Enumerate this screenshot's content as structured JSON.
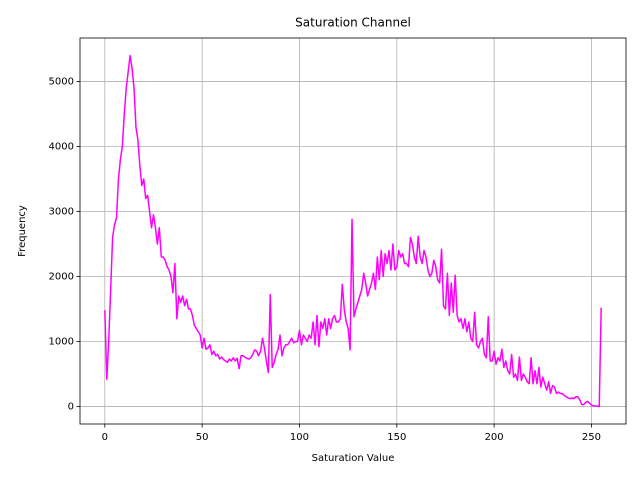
{
  "chart_data": {
    "type": "line",
    "title": "Saturation Channel",
    "x_label": "Saturation Value",
    "y_label": "Frequency",
    "xlim": [
      -12.75,
      267.75
    ],
    "ylim": [
      -270,
      5670
    ],
    "xticks": [
      0,
      50,
      100,
      150,
      200,
      250
    ],
    "yticks": [
      0,
      1000,
      2000,
      3000,
      4000,
      5000
    ],
    "grid": true,
    "x": [
      0,
      1,
      2,
      3,
      4,
      5,
      6,
      7,
      8,
      9,
      10,
      11,
      12,
      13,
      14,
      15,
      16,
      17,
      18,
      19,
      20,
      21,
      22,
      23,
      24,
      25,
      26,
      27,
      28,
      29,
      30,
      31,
      32,
      33,
      34,
      35,
      36,
      37,
      38,
      39,
      40,
      41,
      42,
      43,
      44,
      45,
      46,
      47,
      48,
      49,
      50,
      51,
      52,
      53,
      54,
      55,
      56,
      57,
      58,
      59,
      60,
      61,
      62,
      63,
      64,
      65,
      66,
      67,
      68,
      69,
      70,
      71,
      72,
      73,
      74,
      75,
      76,
      77,
      78,
      79,
      80,
      81,
      82,
      83,
      84,
      85,
      86,
      87,
      88,
      89,
      90,
      91,
      92,
      93,
      94,
      95,
      96,
      97,
      98,
      99,
      100,
      101,
      102,
      103,
      104,
      105,
      106,
      107,
      108,
      109,
      110,
      111,
      112,
      113,
      114,
      115,
      116,
      117,
      118,
      119,
      120,
      121,
      122,
      123,
      124,
      125,
      126,
      127,
      128,
      129,
      130,
      131,
      132,
      133,
      134,
      135,
      136,
      137,
      138,
      139,
      140,
      141,
      142,
      143,
      144,
      145,
      146,
      147,
      148,
      149,
      150,
      151,
      152,
      153,
      154,
      155,
      156,
      157,
      158,
      159,
      160,
      161,
      162,
      163,
      164,
      165,
      166,
      167,
      168,
      169,
      170,
      171,
      172,
      173,
      174,
      175,
      176,
      177,
      178,
      179,
      180,
      181,
      182,
      183,
      184,
      185,
      186,
      187,
      188,
      189,
      190,
      191,
      192,
      193,
      194,
      195,
      196,
      197,
      198,
      199,
      200,
      201,
      202,
      203,
      204,
      205,
      206,
      207,
      208,
      209,
      210,
      211,
      212,
      213,
      214,
      215,
      216,
      217,
      218,
      219,
      220,
      221,
      222,
      223,
      224,
      225,
      226,
      227,
      228,
      229,
      230,
      231,
      232,
      233,
      234,
      235,
      236,
      237,
      238,
      239,
      240,
      241,
      242,
      243,
      244,
      245,
      246,
      247,
      248,
      249,
      250,
      251,
      252,
      253,
      254,
      255
    ],
    "series": [
      {
        "color": "#ff00ff",
        "values": [
          1480,
          420,
          1000,
          1800,
          2600,
          2800,
          2900,
          3500,
          3800,
          4000,
          4500,
          4900,
          5150,
          5400,
          5200,
          4900,
          4300,
          4100,
          3700,
          3400,
          3500,
          3200,
          3250,
          3000,
          2750,
          2950,
          2750,
          2500,
          2750,
          2300,
          2300,
          2250,
          2150,
          2100,
          2000,
          1750,
          2200,
          1350,
          1700,
          1600,
          1700,
          1550,
          1650,
          1500,
          1500,
          1400,
          1250,
          1200,
          1150,
          1100,
          900,
          1050,
          880,
          900,
          950,
          800,
          850,
          780,
          800,
          730,
          760,
          720,
          700,
          680,
          730,
          700,
          750,
          700,
          740,
          580,
          780,
          780,
          760,
          740,
          730,
          750,
          800,
          870,
          850,
          780,
          850,
          1050,
          900,
          700,
          520,
          1720,
          600,
          680,
          800,
          880,
          1100,
          780,
          900,
          950,
          950,
          1000,
          1050,
          980,
          1000,
          1000,
          1170,
          950,
          1100,
          1050,
          1000,
          1100,
          1050,
          1300,
          950,
          1400,
          920,
          1300,
          1200,
          1350,
          1100,
          1350,
          1200,
          1350,
          1400,
          1300,
          1300,
          1350,
          1880,
          1500,
          1300,
          1200,
          870,
          2880,
          1380,
          1500,
          1600,
          1700,
          1800,
          2050,
          1900,
          1700,
          1800,
          1900,
          2050,
          1800,
          2300,
          1950,
          2400,
          2000,
          2350,
          2200,
          2400,
          2100,
          2500,
          2100,
          2150,
          2400,
          2300,
          2350,
          2200,
          2200,
          2150,
          2600,
          2500,
          2300,
          2200,
          2620,
          2300,
          2200,
          2400,
          2300,
          2100,
          2000,
          2050,
          2250,
          2150,
          1950,
          1900,
          2420,
          1550,
          1500,
          2050,
          1400,
          1900,
          1450,
          2020,
          1400,
          1300,
          1350,
          1200,
          1350,
          1150,
          1300,
          1050,
          1000,
          1450,
          950,
          900,
          1000,
          1050,
          800,
          750,
          1380,
          700,
          700,
          850,
          650,
          750,
          700,
          880,
          600,
          700,
          550,
          500,
          800,
          450,
          500,
          400,
          760,
          400,
          500,
          450,
          380,
          350,
          750,
          350,
          550,
          350,
          600,
          300,
          450,
          350,
          250,
          380,
          200,
          320,
          300,
          200,
          220,
          200,
          200,
          170,
          150,
          130,
          120,
          130,
          120,
          150,
          150,
          100,
          30,
          30,
          60,
          80,
          50,
          20,
          10,
          5,
          5,
          0,
          1520
        ]
      }
    ]
  }
}
